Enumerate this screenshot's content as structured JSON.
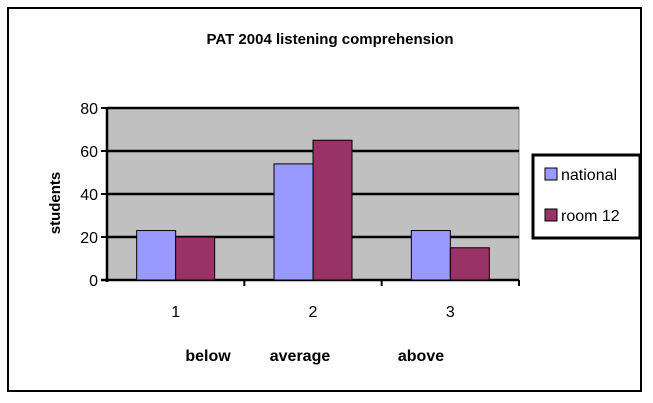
{
  "chart_data": {
    "type": "bar",
    "title": "PAT 2004 listening comprehension",
    "ylabel": "students",
    "categories": [
      "1",
      "2",
      "3"
    ],
    "category_notes": [
      "below",
      "average",
      "above"
    ],
    "ylim": [
      0,
      80
    ],
    "yticks": [
      0,
      20,
      40,
      60,
      80
    ],
    "grid": true,
    "legend_position": "right",
    "plot_background": "#c0c0c0",
    "series": [
      {
        "name": "national",
        "values": [
          23,
          54,
          23
        ],
        "color": "#9999ff"
      },
      {
        "name": "room 12",
        "values": [
          20,
          65,
          15
        ],
        "color": "#993366"
      }
    ]
  }
}
